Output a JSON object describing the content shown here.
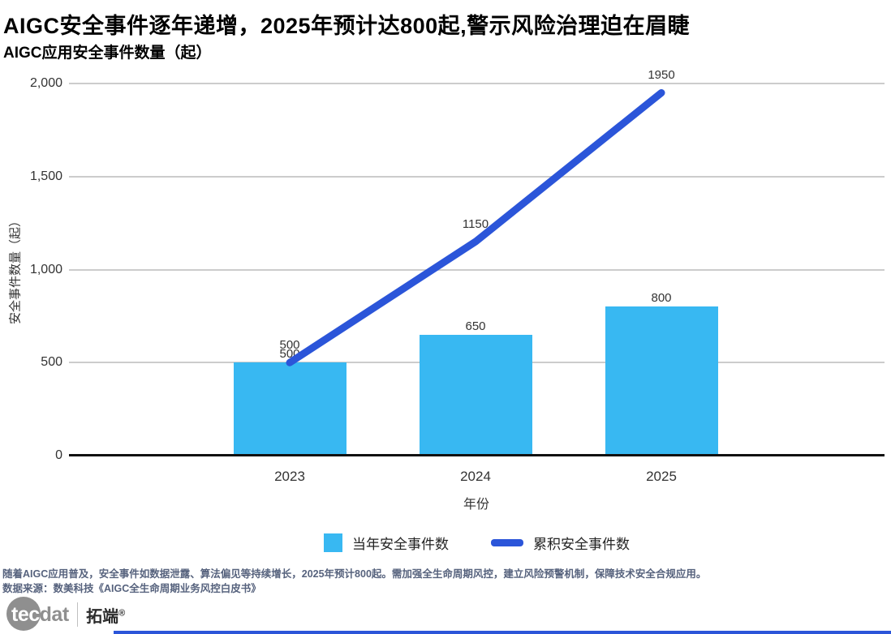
{
  "header": {
    "title": "AIGC安全事件逐年递增，2025年预计达800起,警示风险治理迫在眉睫",
    "subtitle": "AIGC应用安全事件数量（起）"
  },
  "chart_data": {
    "type": "bar",
    "combo": "bar+line",
    "title": "AIGC应用安全事件数量（起）",
    "categories": [
      "2023",
      "2024",
      "2025"
    ],
    "series": [
      {
        "name": "当年安全事件数",
        "type": "bar",
        "values": [
          500,
          650,
          800
        ],
        "color": "#38b8f2"
      },
      {
        "name": "累积安全事件数",
        "type": "line",
        "values": [
          500,
          1150,
          1950
        ],
        "color": "#2b55d9"
      }
    ],
    "xlabel": "年份",
    "ylabel": "安全事件数量（起）",
    "ylim": [
      0,
      2000
    ],
    "yticks": [
      {
        "value": 0,
        "label": "0"
      },
      {
        "value": 500,
        "label": "500"
      },
      {
        "value": 1000,
        "label": "1,000"
      },
      {
        "value": 1500,
        "label": "1,500"
      },
      {
        "value": 2000,
        "label": "2,000"
      }
    ],
    "grid": true,
    "legend_position": "bottom"
  },
  "footer": {
    "note1": "随着AIGC应用普及，安全事件如数据泄露、算法偏见等持续增长，2025年预计800起。需加强全生命周期风控，建立风险预警机制，保障技术安全合规应用。",
    "note2": "数据来源：数美科技《AIGC全生命周期业务风控白皮书》"
  },
  "logo": {
    "tec": "tec",
    "dat": "dat",
    "brand": "拓端",
    "reg": "®"
  }
}
